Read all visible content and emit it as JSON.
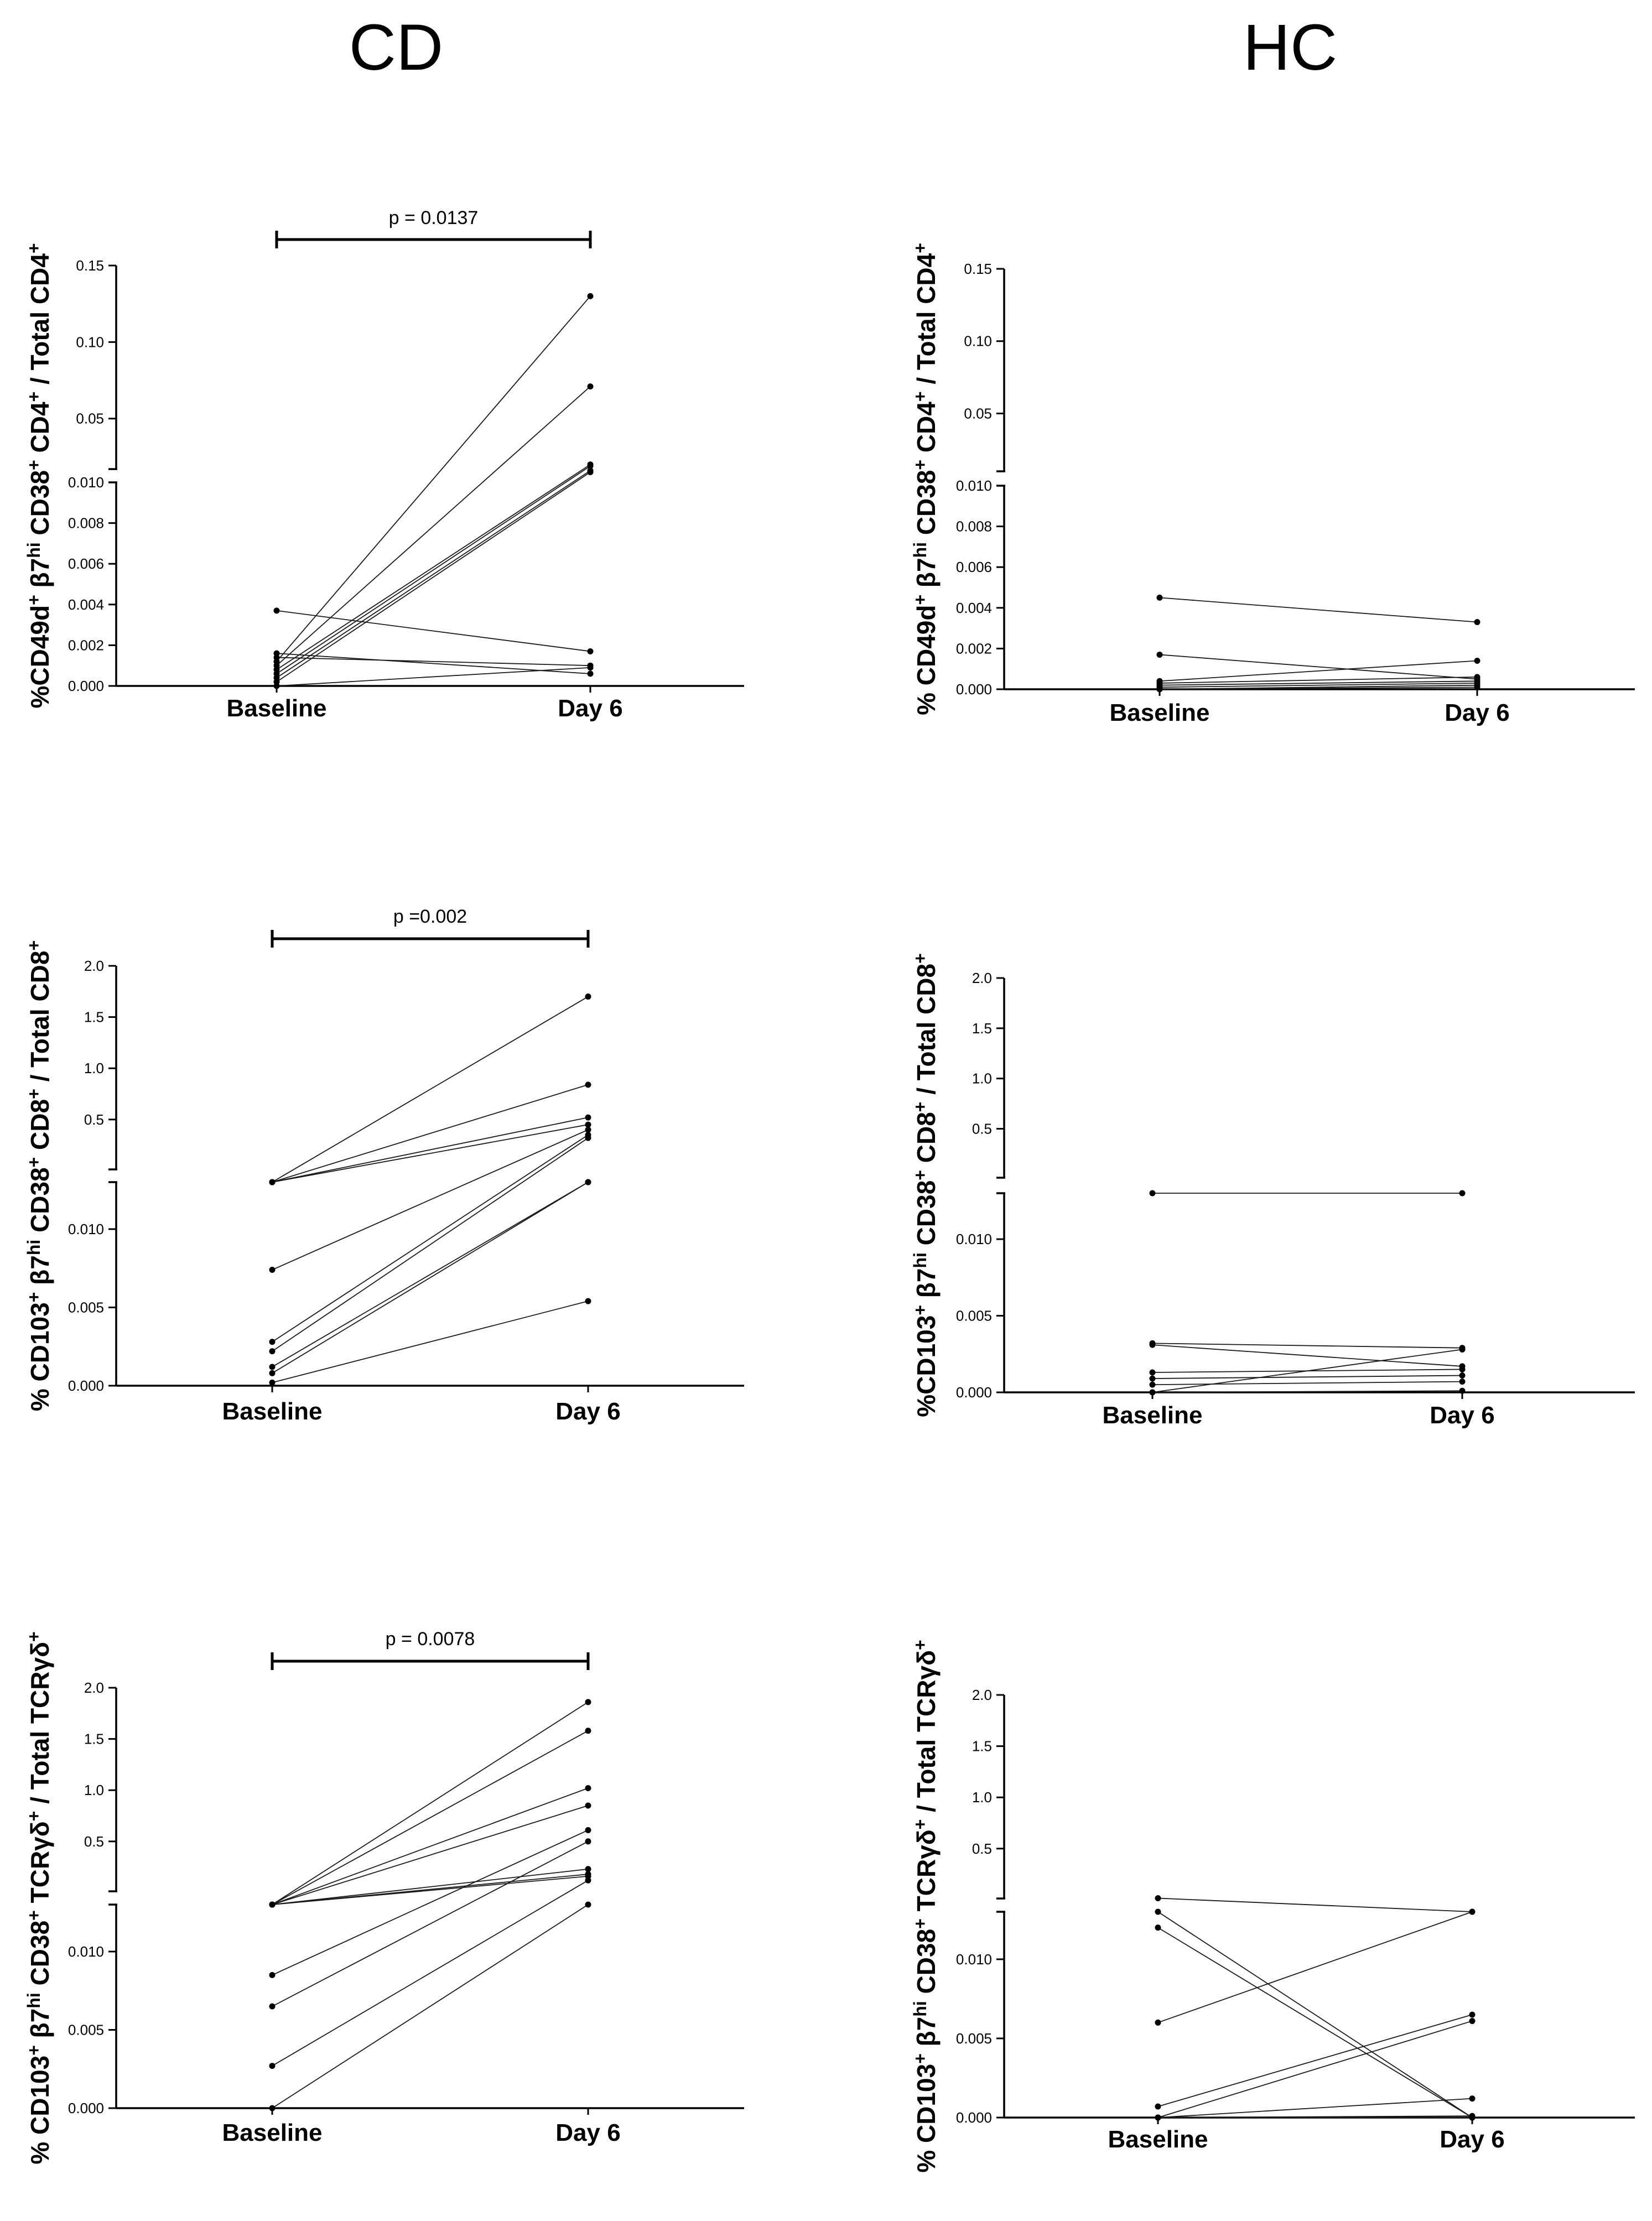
{
  "column_titles": {
    "left": "CD",
    "right": "HC"
  },
  "chart_data": [
    {
      "id": "cd-cd4",
      "type": "line",
      "panel": "CD",
      "categories": [
        "Baseline",
        "Day 6"
      ],
      "y_label_parts": [
        {
          "t": "%CD49d"
        },
        {
          "t": "+",
          "sup": true
        },
        {
          "t": " β7"
        },
        {
          "t": "hi",
          "sup": true
        },
        {
          "t": " CD38"
        },
        {
          "t": "+",
          "sup": true
        },
        {
          "t": " CD4"
        },
        {
          "t": "+",
          "sup": true
        },
        {
          "t": " / Total CD4"
        },
        {
          "t": "+",
          "sup": true
        }
      ],
      "lower_ticks": [
        "0.000",
        "0.002",
        "0.004",
        "0.006",
        "0.008",
        "0.010"
      ],
      "upper_ticks": [
        "0.05",
        "0.10",
        "0.15"
      ],
      "lower_range": [
        0,
        0.01
      ],
      "upper_range": [
        0.017,
        0.15
      ],
      "p_value": "p = 0.0137",
      "series": [
        {
          "values": [
            0.0037,
            0.0017
          ]
        },
        {
          "values": [
            0.0016,
            0.0006
          ]
        },
        {
          "values": [
            0.0014,
            0.001
          ]
        },
        {
          "values": [
            0.0012,
            0.13
          ]
        },
        {
          "values": [
            0.001,
            0.071
          ]
        },
        {
          "values": [
            0.0008,
            0.02
          ]
        },
        {
          "values": [
            0.0006,
            0.019
          ]
        },
        {
          "values": [
            0.0004,
            0.016
          ]
        },
        {
          "values": [
            0.0002,
            0.015
          ]
        },
        {
          "values": [
            0.0,
            0.0009
          ]
        }
      ]
    },
    {
      "id": "hc-cd4",
      "type": "line",
      "panel": "HC",
      "categories": [
        "Baseline",
        "Day 6"
      ],
      "y_label_parts": [
        {
          "t": "% CD49d"
        },
        {
          "t": "+",
          "sup": true
        },
        {
          "t": " β7"
        },
        {
          "t": "hi",
          "sup": true
        },
        {
          "t": " CD38"
        },
        {
          "t": "+",
          "sup": true
        },
        {
          "t": " CD4"
        },
        {
          "t": "+",
          "sup": true
        },
        {
          "t": " / Total CD4"
        },
        {
          "t": "+",
          "sup": true
        }
      ],
      "lower_ticks": [
        "0.000",
        "0.002",
        "0.004",
        "0.006",
        "0.008",
        "0.010"
      ],
      "upper_ticks": [
        "0.05",
        "0.10",
        "0.15"
      ],
      "lower_range": [
        0,
        0.01
      ],
      "upper_range": [
        0.01,
        0.15
      ],
      "p_value": "",
      "series": [
        {
          "values": [
            0.0045,
            0.0033
          ]
        },
        {
          "values": [
            0.0017,
            0.0005
          ]
        },
        {
          "values": [
            0.0004,
            0.0014
          ]
        },
        {
          "values": [
            0.0003,
            0.0006
          ]
        },
        {
          "values": [
            0.0002,
            0.0004
          ]
        },
        {
          "values": [
            0.0001,
            0.0003
          ]
        },
        {
          "values": [
            0.0,
            0.0002
          ]
        },
        {
          "values": [
            0.0,
            0.0001
          ]
        }
      ]
    },
    {
      "id": "cd-cd8",
      "type": "line",
      "panel": "CD",
      "categories": [
        "Baseline",
        "Day 6"
      ],
      "y_label_parts": [
        {
          "t": "% CD103"
        },
        {
          "t": "+",
          "sup": true
        },
        {
          "t": " β7"
        },
        {
          "t": "hi",
          "sup": true
        },
        {
          "t": " CD38"
        },
        {
          "t": "+",
          "sup": true
        },
        {
          "t": " CD8"
        },
        {
          "t": "+",
          "sup": true
        },
        {
          "t": " / Total CD8"
        },
        {
          "t": "+",
          "sup": true
        }
      ],
      "lower_ticks": [
        "0.000",
        "0.005",
        "0.010"
      ],
      "upper_ticks": [
        "0.5",
        "1.0",
        "1.5",
        "2.0"
      ],
      "lower_range": [
        0,
        0.013
      ],
      "upper_range": [
        0.013,
        2.0
      ],
      "p_value": "p =0.002",
      "series": [
        {
          "values": [
            0.013,
            1.7
          ]
        },
        {
          "values": [
            0.013,
            0.84
          ]
        },
        {
          "values": [
            0.013,
            0.52
          ]
        },
        {
          "values": [
            0.013,
            0.45
          ]
        },
        {
          "values": [
            0.0074,
            0.4
          ]
        },
        {
          "values": [
            0.0028,
            0.35
          ]
        },
        {
          "values": [
            0.0022,
            0.32
          ]
        },
        {
          "values": [
            0.0012,
            0.013
          ]
        },
        {
          "values": [
            0.0008,
            0.013
          ]
        },
        {
          "values": [
            0.0002,
            0.0054
          ]
        }
      ]
    },
    {
      "id": "hc-cd8",
      "type": "line",
      "panel": "HC",
      "categories": [
        "Baseline",
        "Day 6"
      ],
      "y_label_parts": [
        {
          "t": "%CD103"
        },
        {
          "t": "+",
          "sup": true
        },
        {
          "t": " β7"
        },
        {
          "t": "hi",
          "sup": true
        },
        {
          "t": " CD38"
        },
        {
          "t": "+",
          "sup": true
        },
        {
          "t": " CD8"
        },
        {
          "t": "+",
          "sup": true
        },
        {
          "t": " / Total CD8"
        },
        {
          "t": "+",
          "sup": true
        }
      ],
      "lower_ticks": [
        "0.000",
        "0.005",
        "0.010"
      ],
      "upper_ticks": [
        "0.5",
        "1.0",
        "1.5",
        "2.0"
      ],
      "lower_range": [
        0,
        0.013
      ],
      "upper_range": [
        0.013,
        2.0
      ],
      "p_value": "",
      "series": [
        {
          "values": [
            0.013,
            0.013
          ]
        },
        {
          "values": [
            0.0032,
            0.0029
          ]
        },
        {
          "values": [
            0.0031,
            0.0017
          ]
        },
        {
          "values": [
            0.0013,
            0.0015
          ]
        },
        {
          "values": [
            0.0009,
            0.0011
          ]
        },
        {
          "values": [
            0.0005,
            0.0007
          ]
        },
        {
          "values": [
            0.0,
            0.0028
          ]
        },
        {
          "values": [
            0.0,
            0.0001
          ]
        }
      ]
    },
    {
      "id": "cd-tcr",
      "type": "line",
      "panel": "CD",
      "categories": [
        "Baseline",
        "Day 6"
      ],
      "y_label_parts": [
        {
          "t": "% CD103"
        },
        {
          "t": "+",
          "sup": true
        },
        {
          "t": " β7"
        },
        {
          "t": "hi",
          "sup": true
        },
        {
          "t": " CD38"
        },
        {
          "t": "+",
          "sup": true
        },
        {
          "t": " TCRγδ"
        },
        {
          "t": "+",
          "sup": true
        },
        {
          "t": " / Total TCRγδ"
        },
        {
          "t": "+",
          "sup": true
        }
      ],
      "lower_ticks": [
        "0.000",
        "0.005",
        "0.010"
      ],
      "upper_ticks": [
        "0.5",
        "1.0",
        "1.5",
        "2.0"
      ],
      "lower_range": [
        0,
        0.013
      ],
      "upper_range": [
        0.013,
        2.0
      ],
      "p_value": "p = 0.0078",
      "series": [
        {
          "values": [
            0.013,
            1.86
          ]
        },
        {
          "values": [
            0.013,
            1.58
          ]
        },
        {
          "values": [
            0.013,
            1.02
          ]
        },
        {
          "values": [
            0.013,
            0.85
          ]
        },
        {
          "values": [
            0.013,
            0.23
          ]
        },
        {
          "values": [
            0.013,
            0.18
          ]
        },
        {
          "values": [
            0.013,
            0.16
          ]
        },
        {
          "values": [
            0.0085,
            0.61
          ]
        },
        {
          "values": [
            0.0065,
            0.5
          ]
        },
        {
          "values": [
            0.0027,
            0.12
          ]
        },
        {
          "values": [
            0.0,
            0.013
          ]
        }
      ]
    },
    {
      "id": "hc-tcr",
      "type": "line",
      "panel": "HC",
      "categories": [
        "Baseline",
        "Day 6"
      ],
      "y_label_parts": [
        {
          "t": "% CD103"
        },
        {
          "t": "+",
          "sup": true
        },
        {
          "t": " β7"
        },
        {
          "t": "hi",
          "sup": true
        },
        {
          "t": " CD38"
        },
        {
          "t": "+",
          "sup": true
        },
        {
          "t": " TCRγδ"
        },
        {
          "t": "+",
          "sup": true
        },
        {
          "t": " / Total TCRγδ"
        },
        {
          "t": "+",
          "sup": true
        }
      ],
      "lower_ticks": [
        "0.000",
        "0.005",
        "0.010"
      ],
      "upper_ticks": [
        "0.5",
        "1.0",
        "1.5",
        "2.0"
      ],
      "lower_range": [
        0,
        0.013
      ],
      "upper_range": [
        0.013,
        2.0
      ],
      "p_value": "",
      "series": [
        {
          "values": [
            0.016,
            0.013
          ]
        },
        {
          "values": [
            0.013,
            0.0
          ]
        },
        {
          "values": [
            0.012,
            0.0
          ]
        },
        {
          "values": [
            0.006,
            0.013
          ]
        },
        {
          "values": [
            0.0007,
            0.0065
          ]
        },
        {
          "values": [
            0.0,
            0.0061
          ]
        },
        {
          "values": [
            0.0,
            0.0012
          ]
        },
        {
          "values": [
            0.0,
            0.0001
          ]
        },
        {
          "values": [
            0.0,
            0.0
          ]
        }
      ]
    }
  ]
}
